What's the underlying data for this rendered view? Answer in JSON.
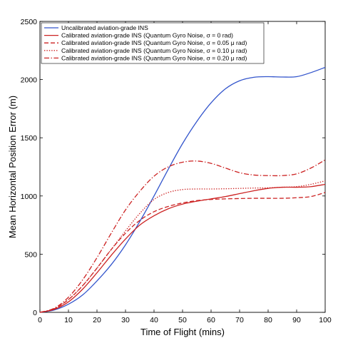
{
  "chart_data": {
    "type": "line",
    "xlabel": "Time of Flight (mins)",
    "ylabel": "Mean Horizontal Position Error (m)",
    "xlim": [
      0,
      100
    ],
    "ylim": [
      0,
      2500
    ],
    "xticks": [
      "0",
      "10",
      "20",
      "30",
      "40",
      "50",
      "60",
      "70",
      "80",
      "90",
      "100"
    ],
    "yticks": [
      "0",
      "500",
      "1000",
      "1500",
      "2000",
      "2500"
    ],
    "grid": false,
    "legend_position": "top-left",
    "x": [
      0,
      5,
      10,
      15,
      20,
      25,
      30,
      35,
      40,
      45,
      50,
      55,
      60,
      65,
      70,
      75,
      80,
      85,
      90,
      95,
      100
    ],
    "series": [
      {
        "name": "Uncalibrated aviation-grade INS",
        "color": "#3355cc",
        "dash": "solid",
        "values": [
          0,
          20,
          70,
          150,
          270,
          410,
          580,
          780,
          1000,
          1230,
          1450,
          1640,
          1800,
          1920,
          1990,
          2020,
          2025,
          2022,
          2025,
          2060,
          2105
        ]
      },
      {
        "name": "Calibrated aviation-grade INS (Quantum Gyro Noise, σ = 0 rad)",
        "color": "#cc2222",
        "dash": "solid",
        "values": [
          0,
          25,
          90,
          200,
          340,
          490,
          630,
          750,
          830,
          890,
          930,
          955,
          975,
          995,
          1020,
          1045,
          1065,
          1075,
          1075,
          1080,
          1100
        ]
      },
      {
        "name": "Calibrated aviation-grade INS (Quantum Gyro Noise, σ = 0.05 μ rad)",
        "color": "#cc2222",
        "dash": "dashed",
        "values": [
          0,
          30,
          110,
          230,
          380,
          540,
          680,
          790,
          865,
          910,
          940,
          960,
          970,
          975,
          978,
          980,
          980,
          980,
          985,
          995,
          1030
        ]
      },
      {
        "name": "Calibrated aviation-grade INS (Quantum Gyro Noise, σ = 0.10 μ rad)",
        "color": "#cc2222",
        "dash": "dotted",
        "values": [
          0,
          30,
          110,
          230,
          380,
          540,
          700,
          850,
          970,
          1030,
          1055,
          1060,
          1060,
          1062,
          1065,
          1068,
          1070,
          1075,
          1080,
          1100,
          1130
        ]
      },
      {
        "name": "Calibrated aviation-grade INS (Quantum Gyro Noise, σ = 0.20 μ rad)",
        "color": "#cc2222",
        "dash": "dashdot",
        "values": [
          0,
          35,
          130,
          280,
          470,
          680,
          880,
          1040,
          1170,
          1250,
          1290,
          1300,
          1280,
          1240,
          1200,
          1180,
          1175,
          1175,
          1190,
          1240,
          1310
        ]
      }
    ]
  }
}
